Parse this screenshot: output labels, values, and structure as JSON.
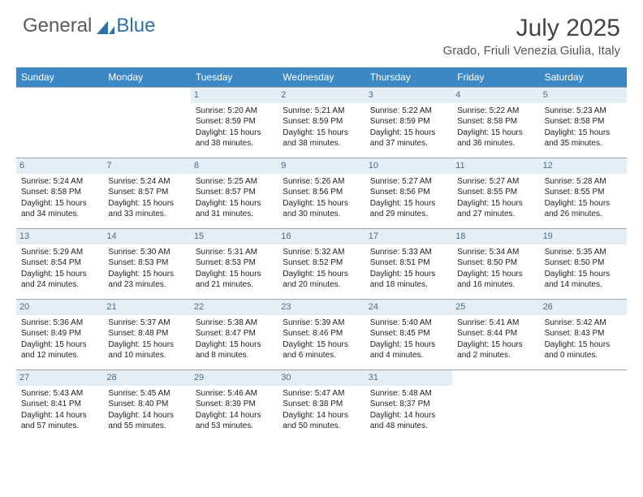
{
  "brand": {
    "part1": "General",
    "part2": "Blue"
  },
  "title": "July 2025",
  "location": "Grado, Friuli Venezia Giulia, Italy",
  "colors": {
    "header_bg": "#3b88c4",
    "daynum_bg": "#e6eef5",
    "daynum_fg": "#4a6c8a",
    "grid_line": "#9aa5ae"
  },
  "dayHeaders": [
    "Sunday",
    "Monday",
    "Tuesday",
    "Wednesday",
    "Thursday",
    "Friday",
    "Saturday"
  ],
  "weeks": [
    [
      null,
      null,
      {
        "n": "1",
        "sr": "5:20 AM",
        "ss": "8:59 PM",
        "dh": "15",
        "dm": "38"
      },
      {
        "n": "2",
        "sr": "5:21 AM",
        "ss": "8:59 PM",
        "dh": "15",
        "dm": "38"
      },
      {
        "n": "3",
        "sr": "5:22 AM",
        "ss": "8:59 PM",
        "dh": "15",
        "dm": "37"
      },
      {
        "n": "4",
        "sr": "5:22 AM",
        "ss": "8:58 PM",
        "dh": "15",
        "dm": "36"
      },
      {
        "n": "5",
        "sr": "5:23 AM",
        "ss": "8:58 PM",
        "dh": "15",
        "dm": "35"
      }
    ],
    [
      {
        "n": "6",
        "sr": "5:24 AM",
        "ss": "8:58 PM",
        "dh": "15",
        "dm": "34"
      },
      {
        "n": "7",
        "sr": "5:24 AM",
        "ss": "8:57 PM",
        "dh": "15",
        "dm": "33"
      },
      {
        "n": "8",
        "sr": "5:25 AM",
        "ss": "8:57 PM",
        "dh": "15",
        "dm": "31"
      },
      {
        "n": "9",
        "sr": "5:26 AM",
        "ss": "8:56 PM",
        "dh": "15",
        "dm": "30"
      },
      {
        "n": "10",
        "sr": "5:27 AM",
        "ss": "8:56 PM",
        "dh": "15",
        "dm": "29"
      },
      {
        "n": "11",
        "sr": "5:27 AM",
        "ss": "8:55 PM",
        "dh": "15",
        "dm": "27"
      },
      {
        "n": "12",
        "sr": "5:28 AM",
        "ss": "8:55 PM",
        "dh": "15",
        "dm": "26"
      }
    ],
    [
      {
        "n": "13",
        "sr": "5:29 AM",
        "ss": "8:54 PM",
        "dh": "15",
        "dm": "24"
      },
      {
        "n": "14",
        "sr": "5:30 AM",
        "ss": "8:53 PM",
        "dh": "15",
        "dm": "23"
      },
      {
        "n": "15",
        "sr": "5:31 AM",
        "ss": "8:53 PM",
        "dh": "15",
        "dm": "21"
      },
      {
        "n": "16",
        "sr": "5:32 AM",
        "ss": "8:52 PM",
        "dh": "15",
        "dm": "20"
      },
      {
        "n": "17",
        "sr": "5:33 AM",
        "ss": "8:51 PM",
        "dh": "15",
        "dm": "18"
      },
      {
        "n": "18",
        "sr": "5:34 AM",
        "ss": "8:50 PM",
        "dh": "15",
        "dm": "16"
      },
      {
        "n": "19",
        "sr": "5:35 AM",
        "ss": "8:50 PM",
        "dh": "15",
        "dm": "14"
      }
    ],
    [
      {
        "n": "20",
        "sr": "5:36 AM",
        "ss": "8:49 PM",
        "dh": "15",
        "dm": "12"
      },
      {
        "n": "21",
        "sr": "5:37 AM",
        "ss": "8:48 PM",
        "dh": "15",
        "dm": "10"
      },
      {
        "n": "22",
        "sr": "5:38 AM",
        "ss": "8:47 PM",
        "dh": "15",
        "dm": "8"
      },
      {
        "n": "23",
        "sr": "5:39 AM",
        "ss": "8:46 PM",
        "dh": "15",
        "dm": "6"
      },
      {
        "n": "24",
        "sr": "5:40 AM",
        "ss": "8:45 PM",
        "dh": "15",
        "dm": "4"
      },
      {
        "n": "25",
        "sr": "5:41 AM",
        "ss": "8:44 PM",
        "dh": "15",
        "dm": "2"
      },
      {
        "n": "26",
        "sr": "5:42 AM",
        "ss": "8:43 PM",
        "dh": "15",
        "dm": "0"
      }
    ],
    [
      {
        "n": "27",
        "sr": "5:43 AM",
        "ss": "8:41 PM",
        "dh": "14",
        "dm": "57"
      },
      {
        "n": "28",
        "sr": "5:45 AM",
        "ss": "8:40 PM",
        "dh": "14",
        "dm": "55"
      },
      {
        "n": "29",
        "sr": "5:46 AM",
        "ss": "8:39 PM",
        "dh": "14",
        "dm": "53"
      },
      {
        "n": "30",
        "sr": "5:47 AM",
        "ss": "8:38 PM",
        "dh": "14",
        "dm": "50"
      },
      {
        "n": "31",
        "sr": "5:48 AM",
        "ss": "8:37 PM",
        "dh": "14",
        "dm": "48"
      },
      null,
      null
    ]
  ],
  "labels": {
    "sunrise": "Sunrise:",
    "sunset": "Sunset:",
    "daylight": "Daylight:",
    "hours": "hours",
    "and": "and",
    "minutes": "minutes."
  }
}
